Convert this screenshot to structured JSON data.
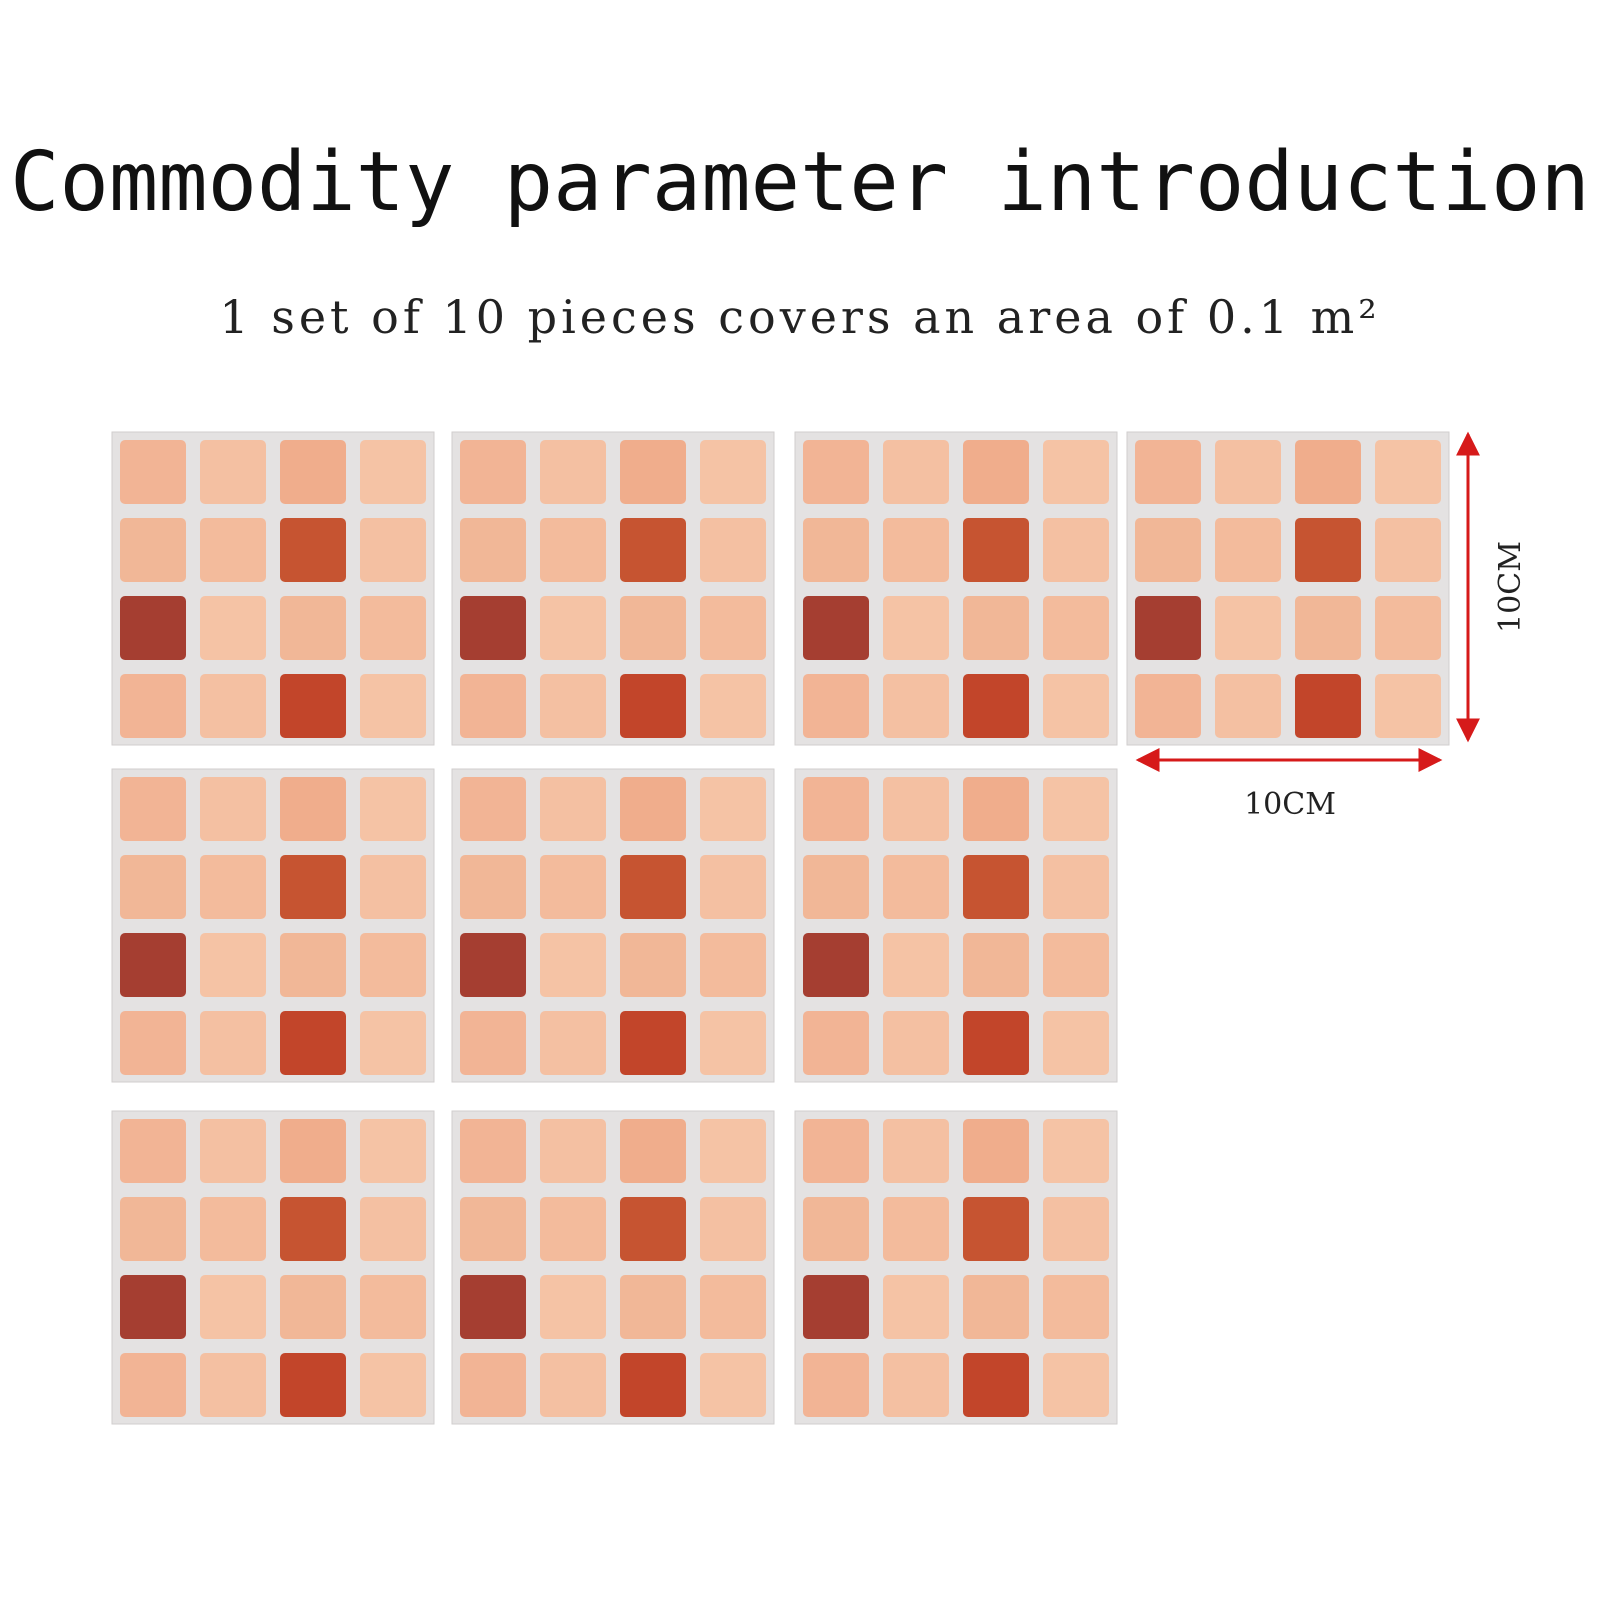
{
  "header": {
    "title": "Commodity parameter introduction",
    "subtitle": "1 set of 10 pieces covers an area of 0.1 m²"
  },
  "dimensions": {
    "height_label": "10CM",
    "width_label": "10CM"
  }
}
